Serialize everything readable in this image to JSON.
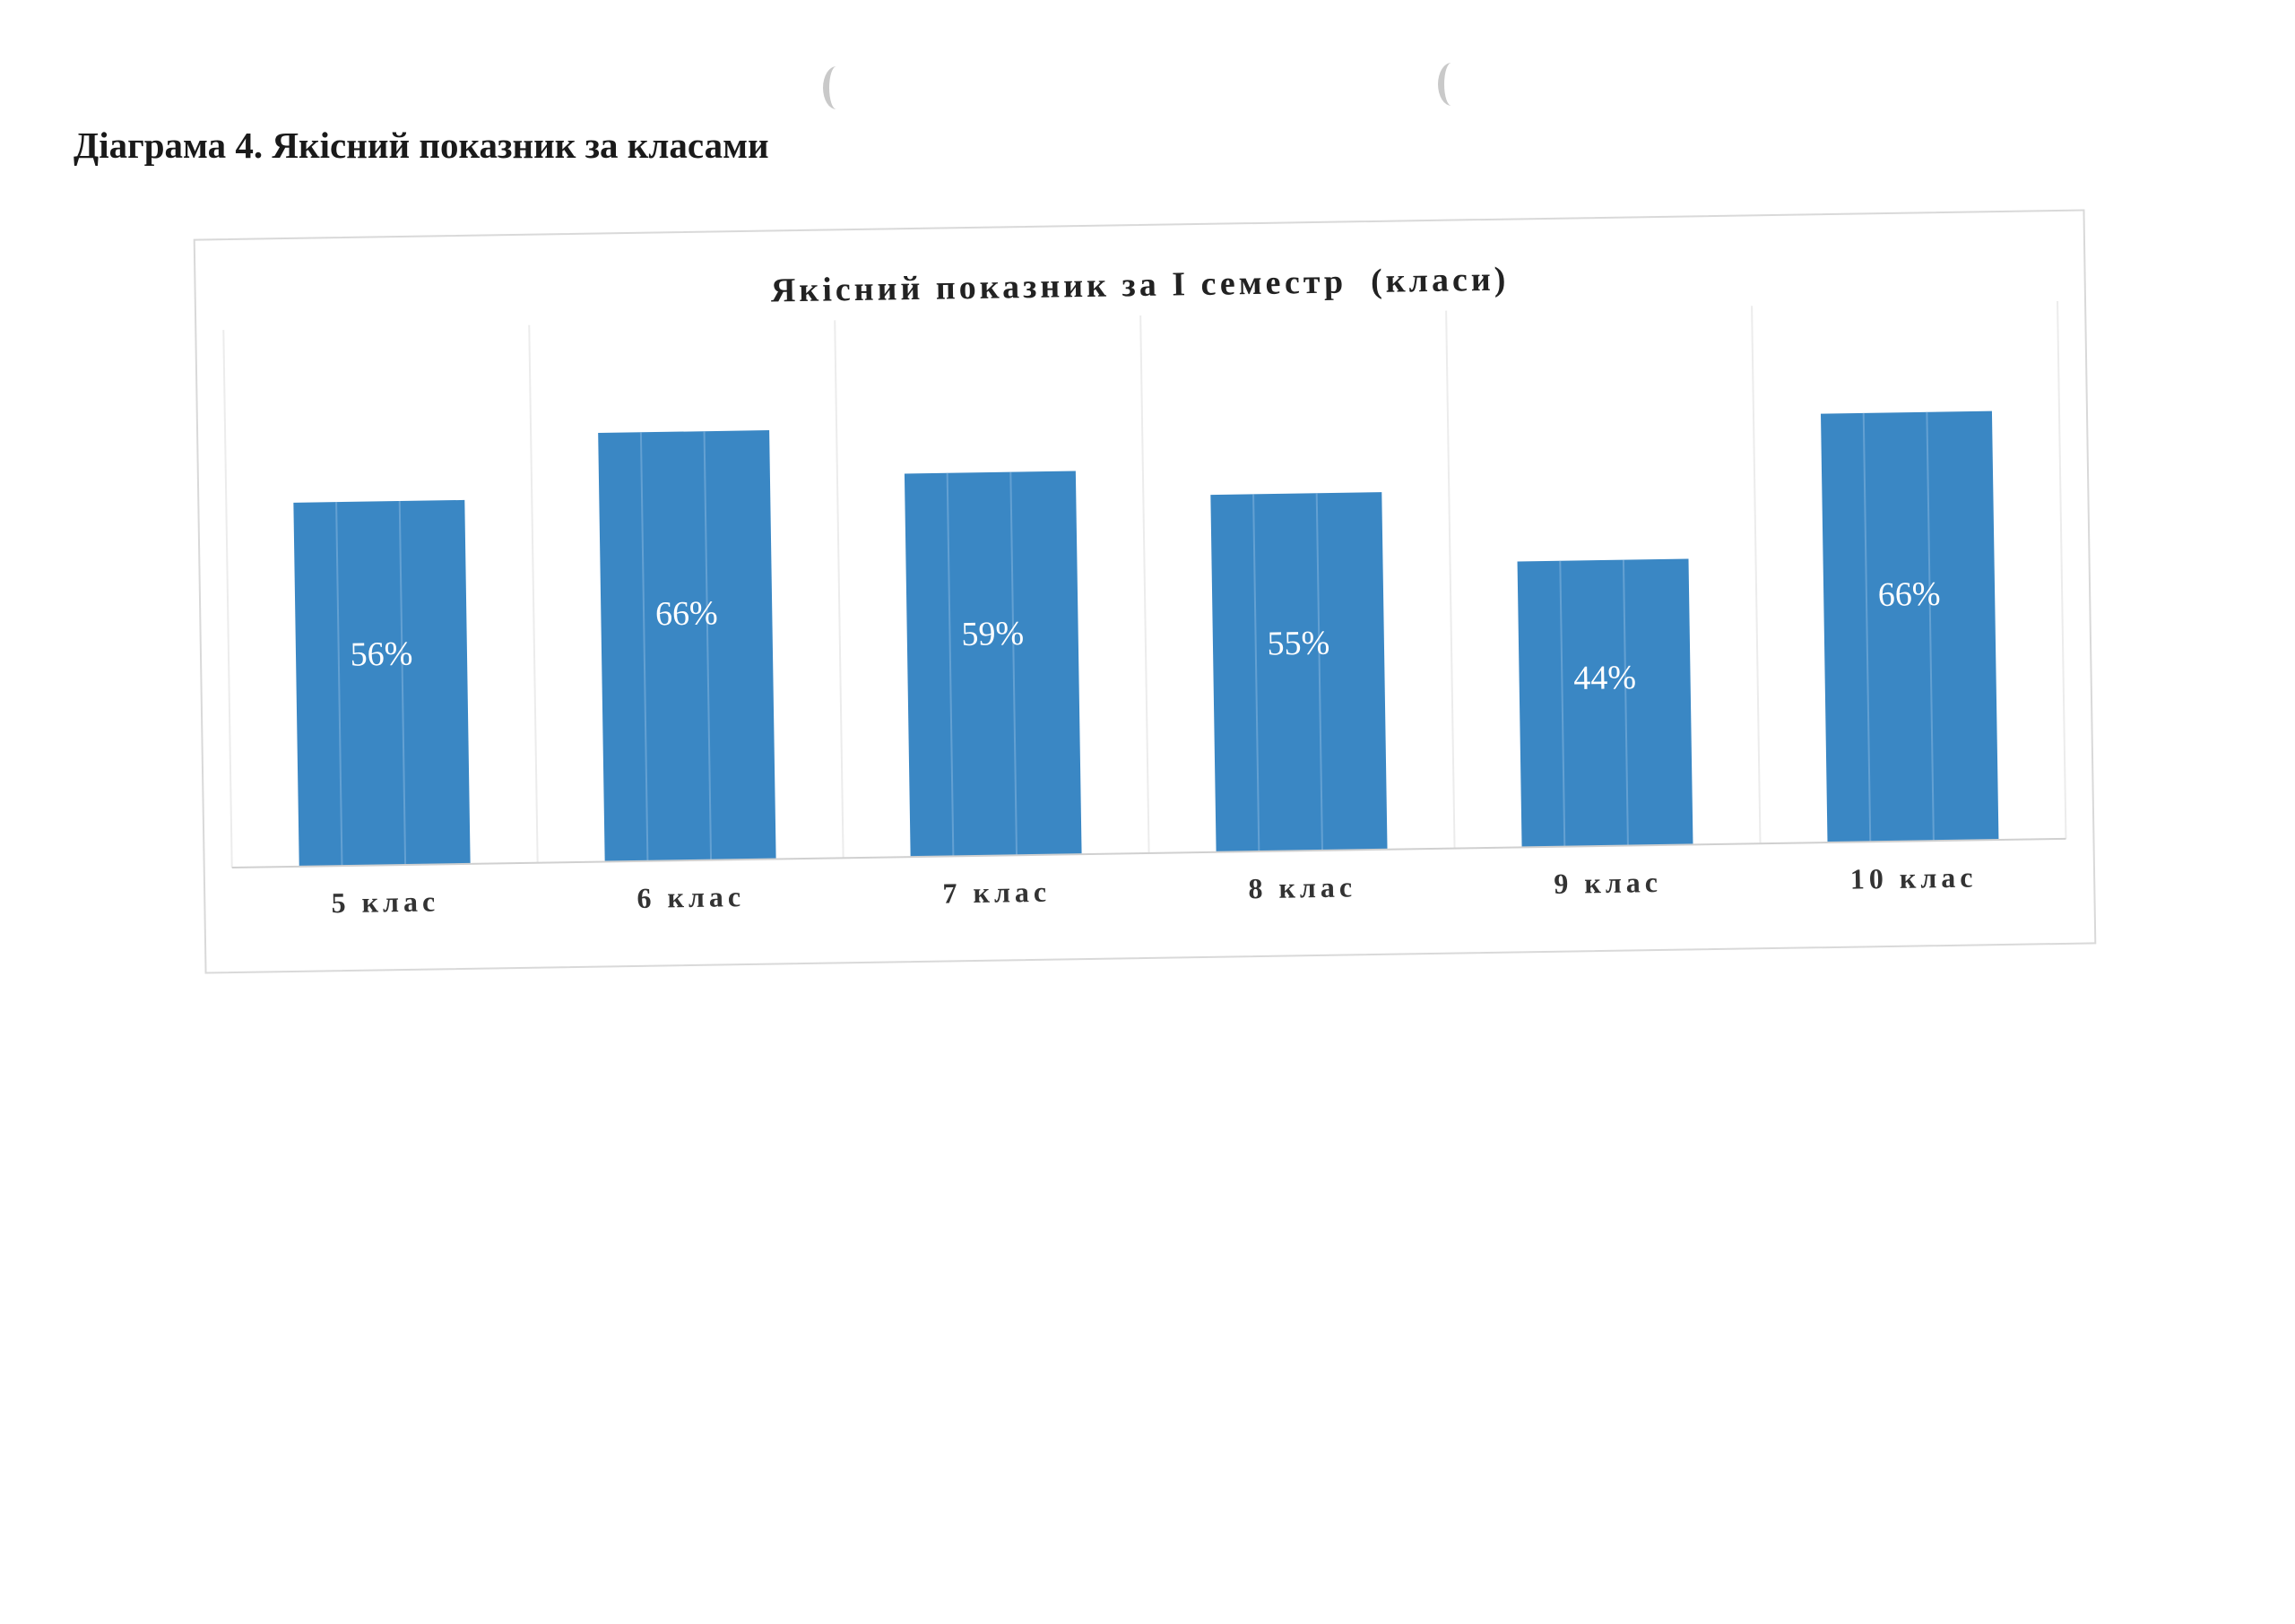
{
  "page": {
    "heading": "Діаграма 4. Якісний показник за класами"
  },
  "chart_data": {
    "type": "bar",
    "title": "Якісний показник за І семестр  (класи)",
    "categories": [
      "5 клас",
      "6 клас",
      "7 клас",
      "8 клас",
      "9 клас",
      "10 клас"
    ],
    "values": [
      56,
      66,
      59,
      55,
      44,
      66
    ],
    "data_labels": [
      "56%",
      "66%",
      "59%",
      "55%",
      "44%",
      "66%"
    ],
    "unit": "%",
    "xlabel": "",
    "ylabel": "",
    "ylim": [
      0,
      80
    ],
    "grid": "vertical category separators",
    "legend": "none",
    "bar_color": "#3a87c4",
    "label_color": "#ffffff"
  }
}
